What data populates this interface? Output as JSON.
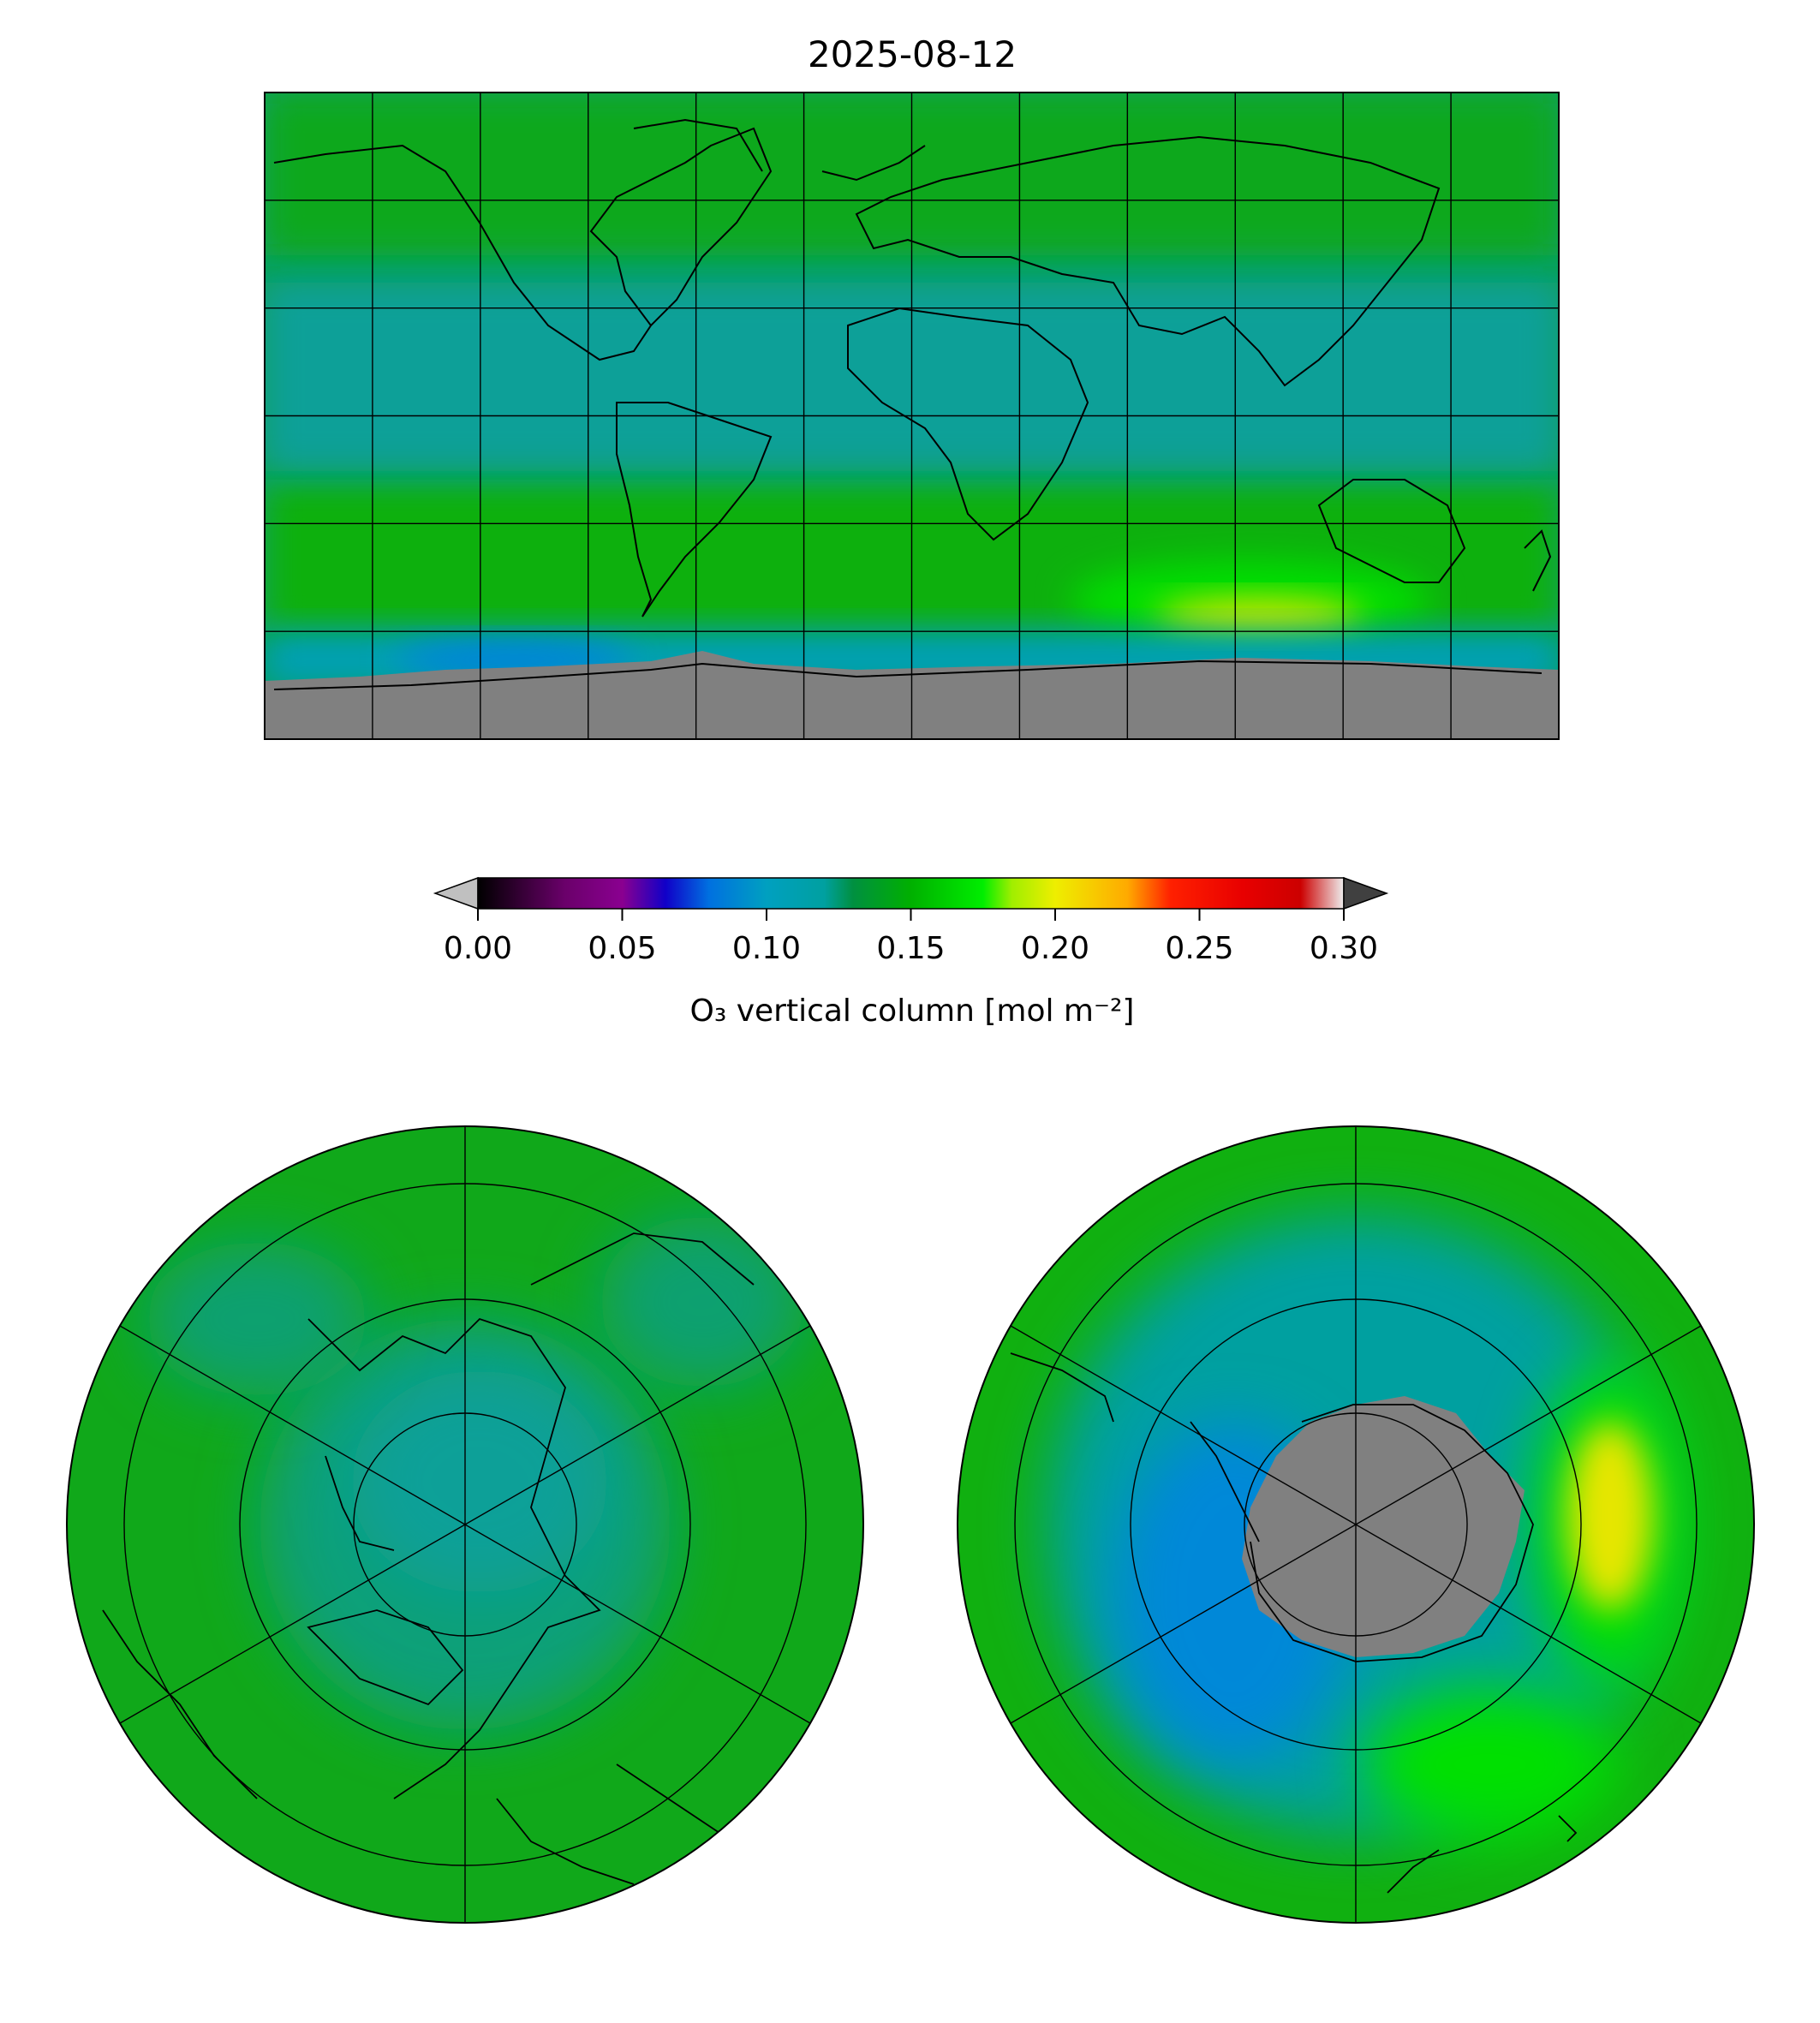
{
  "figure": {
    "title": "2025-08-12"
  },
  "colorbar": {
    "label": "O₃ vertical column [mol m⁻²]",
    "ticks": [
      "0.00",
      "0.05",
      "0.10",
      "0.15",
      "0.20",
      "0.25",
      "0.30"
    ],
    "tick_values": [
      0.0,
      0.05,
      0.1,
      0.15,
      0.2,
      0.25,
      0.3
    ],
    "range": [
      0.0,
      0.3
    ],
    "extend": "both",
    "under_color": "#c0c0c0",
    "over_color": "#404040",
    "colormap": [
      [
        0.0,
        "#000000"
      ],
      [
        0.03,
        "#6a006a"
      ],
      [
        0.05,
        "#8a0090"
      ],
      [
        0.065,
        "#1000c8"
      ],
      [
        0.08,
        "#0070e0"
      ],
      [
        0.1,
        "#00a0c0"
      ],
      [
        0.12,
        "#00a0a0"
      ],
      [
        0.13,
        "#009040"
      ],
      [
        0.15,
        "#00b000"
      ],
      [
        0.175,
        "#00ee00"
      ],
      [
        0.185,
        "#a0ee00"
      ],
      [
        0.2,
        "#eeee00"
      ],
      [
        0.225,
        "#ffaa00"
      ],
      [
        0.24,
        "#ff2000"
      ],
      [
        0.265,
        "#e80000"
      ],
      [
        0.285,
        "#cc0000"
      ],
      [
        0.3,
        "#eeeeee"
      ]
    ]
  },
  "colors": {
    "no_data": "#808080",
    "global_background": "#08a060",
    "southern_high": "#e6e600"
  },
  "maps": [
    {
      "projection": "plate-carree",
      "extent": "global"
    },
    {
      "projection": "north-polar-stereographic",
      "hemisphere": "north"
    },
    {
      "projection": "south-polar-stereographic",
      "hemisphere": "south"
    }
  ]
}
